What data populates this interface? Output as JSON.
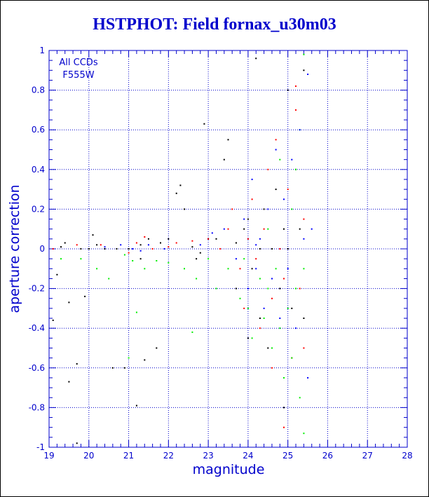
{
  "colors": {
    "axis": "#0000cc",
    "title": "#0000cc",
    "black": "#000000",
    "red": "#ff0000",
    "green": "#00ee00",
    "blue": "#0000ff"
  },
  "chart_data": {
    "type": "scatter",
    "title": "HSTPHOT: Field fornax_u30m03",
    "xlabel": "magnitude",
    "ylabel": "aperture correction",
    "xlim": [
      19,
      28
    ],
    "ylim": [
      -1,
      1
    ],
    "grid": true,
    "xticks": [
      "19",
      "20",
      "21",
      "22",
      "23",
      "24",
      "25",
      "26",
      "27",
      "28"
    ],
    "yticks": [
      "-1",
      "-0.8",
      "-0.6",
      "-0.4",
      "-0.2",
      "0",
      "0.2",
      "0.4",
      "0.6",
      "0.8",
      "1"
    ],
    "annotations": [
      "All CCDs",
      "F555W"
    ],
    "series": [
      {
        "color": "black",
        "points": [
          [
            19.1,
            -0.36
          ],
          [
            19.2,
            -0.13
          ],
          [
            19.3,
            0.01
          ],
          [
            19.4,
            0.03
          ],
          [
            19.5,
            -0.27
          ],
          [
            19.5,
            -0.67
          ],
          [
            19.7,
            -0.98
          ],
          [
            19.7,
            -0.58
          ],
          [
            19.8,
            0.0
          ],
          [
            19.9,
            -0.24
          ],
          [
            20.0,
            0.0
          ],
          [
            20.1,
            0.07
          ],
          [
            20.2,
            0.02
          ],
          [
            20.4,
            0.0
          ],
          [
            20.6,
            -0.6
          ],
          [
            20.7,
            0.0
          ],
          [
            20.9,
            -0.6
          ],
          [
            21.0,
            0.0
          ],
          [
            21.2,
            -0.79
          ],
          [
            21.3,
            0.02
          ],
          [
            21.4,
            -0.56
          ],
          [
            21.5,
            0.05
          ],
          [
            21.7,
            -0.5
          ],
          [
            21.8,
            0.03
          ],
          [
            22.0,
            0.05
          ],
          [
            22.2,
            0.28
          ],
          [
            22.3,
            0.32
          ],
          [
            22.4,
            0.2
          ],
          [
            22.6,
            0.01
          ],
          [
            22.8,
            -0.02
          ],
          [
            22.9,
            0.63
          ],
          [
            23.0,
            0.05
          ],
          [
            23.2,
            0.05
          ],
          [
            23.4,
            0.45
          ],
          [
            23.5,
            0.55
          ],
          [
            23.7,
            0.03
          ],
          [
            23.9,
            0.1
          ],
          [
            24.0,
            0.15
          ],
          [
            24.0,
            -0.45
          ],
          [
            24.1,
            -0.1
          ],
          [
            24.2,
            0.96
          ],
          [
            24.3,
            0.0
          ],
          [
            24.4,
            0.2
          ],
          [
            24.5,
            -0.5
          ],
          [
            24.6,
            0.0
          ],
          [
            24.7,
            0.3
          ],
          [
            24.8,
            -0.2
          ],
          [
            24.9,
            0.1
          ],
          [
            25.0,
            0.0
          ],
          [
            25.1,
            -0.3
          ],
          [
            25.2,
            0.4
          ],
          [
            25.3,
            0.1
          ],
          [
            25.4,
            -0.35
          ],
          [
            25.4,
            0.9
          ],
          [
            24.9,
            -0.8
          ],
          [
            25.0,
            0.8
          ],
          [
            23.7,
            -0.2
          ],
          [
            24.3,
            -0.35
          ],
          [
            22.7,
            -0.05
          ],
          [
            21.3,
            -0.05
          ]
        ]
      },
      {
        "color": "red",
        "points": [
          [
            19.1,
            0.0
          ],
          [
            19.7,
            0.02
          ],
          [
            20.3,
            0.02
          ],
          [
            21.0,
            -0.02
          ],
          [
            21.2,
            0.03
          ],
          [
            21.4,
            0.06
          ],
          [
            21.6,
            0.0
          ],
          [
            22.0,
            0.01
          ],
          [
            22.2,
            0.03
          ],
          [
            22.6,
            0.04
          ],
          [
            23.0,
            0.05
          ],
          [
            23.3,
            0.0
          ],
          [
            23.6,
            0.2
          ],
          [
            23.9,
            -0.3
          ],
          [
            24.1,
            0.25
          ],
          [
            24.3,
            -0.4
          ],
          [
            24.4,
            0.1
          ],
          [
            24.5,
            0.4
          ],
          [
            24.6,
            -0.25
          ],
          [
            24.7,
            0.55
          ],
          [
            24.8,
            0.0
          ],
          [
            24.9,
            -0.15
          ],
          [
            25.0,
            0.3
          ],
          [
            25.1,
            -0.55
          ],
          [
            25.2,
            0.7
          ],
          [
            25.3,
            -0.2
          ],
          [
            25.4,
            0.15
          ],
          [
            25.4,
            -0.5
          ],
          [
            24.2,
            -0.05
          ],
          [
            24.0,
            0.05
          ],
          [
            23.8,
            -0.1
          ],
          [
            24.6,
            -0.6
          ],
          [
            25.2,
            0.82
          ],
          [
            24.9,
            -0.9
          ],
          [
            23.5,
            0.1
          ]
        ]
      },
      {
        "color": "green",
        "points": [
          [
            19.3,
            -0.05
          ],
          [
            19.8,
            -0.05
          ],
          [
            20.2,
            -0.1
          ],
          [
            20.5,
            -0.15
          ],
          [
            20.9,
            -0.03
          ],
          [
            21.1,
            -0.06
          ],
          [
            21.2,
            -0.32
          ],
          [
            21.4,
            -0.1
          ],
          [
            21.7,
            -0.06
          ],
          [
            22.0,
            -0.07
          ],
          [
            22.4,
            -0.1
          ],
          [
            22.7,
            -0.15
          ],
          [
            23.0,
            -0.05
          ],
          [
            23.2,
            -0.2
          ],
          [
            23.5,
            -0.1
          ],
          [
            23.8,
            -0.25
          ],
          [
            24.0,
            -0.3
          ],
          [
            24.1,
            -0.45
          ],
          [
            24.3,
            -0.15
          ],
          [
            24.4,
            -0.35
          ],
          [
            24.5,
            -0.2
          ],
          [
            24.6,
            -0.5
          ],
          [
            24.7,
            -0.1
          ],
          [
            24.8,
            -0.4
          ],
          [
            24.9,
            -0.65
          ],
          [
            25.0,
            -0.3
          ],
          [
            25.1,
            -0.55
          ],
          [
            25.2,
            -0.2
          ],
          [
            25.3,
            -0.75
          ],
          [
            25.4,
            -0.1
          ],
          [
            25.4,
            -0.93
          ],
          [
            25.4,
            0.98
          ],
          [
            25.3,
            0.6
          ],
          [
            25.2,
            0.4
          ],
          [
            25.1,
            0.2
          ],
          [
            24.8,
            0.45
          ],
          [
            24.5,
            0.1
          ],
          [
            23.9,
            -0.05
          ],
          [
            21.0,
            -0.55
          ],
          [
            22.6,
            -0.42
          ]
        ]
      },
      {
        "color": "blue",
        "points": [
          [
            20.4,
            0.01
          ],
          [
            20.8,
            0.02
          ],
          [
            21.1,
            0.0
          ],
          [
            21.3,
            -0.01
          ],
          [
            21.5,
            0.02
          ],
          [
            21.9,
            0.0
          ],
          [
            22.8,
            0.02
          ],
          [
            23.1,
            0.08
          ],
          [
            23.4,
            0.1
          ],
          [
            23.7,
            -0.05
          ],
          [
            23.9,
            0.15
          ],
          [
            24.0,
            -0.2
          ],
          [
            24.1,
            0.35
          ],
          [
            24.2,
            -0.1
          ],
          [
            24.3,
            0.05
          ],
          [
            24.4,
            -0.3
          ],
          [
            24.5,
            0.2
          ],
          [
            24.6,
            -0.15
          ],
          [
            24.7,
            0.5
          ],
          [
            24.8,
            -0.35
          ],
          [
            24.9,
            0.25
          ],
          [
            25.0,
            -0.1
          ],
          [
            25.1,
            0.45
          ],
          [
            25.2,
            -0.4
          ],
          [
            25.3,
            0.6
          ],
          [
            25.4,
            0.05
          ],
          [
            25.5,
            0.88
          ],
          [
            25.5,
            -0.65
          ],
          [
            25.6,
            0.1
          ],
          [
            24.2,
            0.02
          ]
        ]
      }
    ]
  }
}
